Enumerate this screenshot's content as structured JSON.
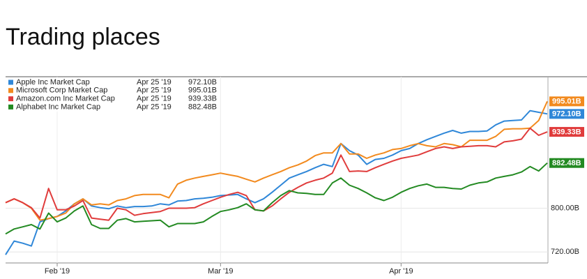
{
  "chart_data": {
    "type": "line",
    "title": "Trading places",
    "categories": [
      null,
      null,
      null,
      null,
      null,
      null,
      "Feb '19",
      null,
      null,
      null,
      null,
      null,
      null,
      null,
      null,
      null,
      null,
      null,
      null,
      null,
      null,
      null,
      null,
      null,
      null,
      "Mar '19",
      null,
      null,
      null,
      null,
      null,
      null,
      null,
      null,
      null,
      null,
      null,
      null,
      null,
      null,
      null,
      null,
      null,
      null,
      null,
      null,
      "Apr '19",
      null,
      null,
      null,
      null,
      null,
      null,
      null,
      null,
      null,
      null,
      null,
      null,
      null,
      null,
      null,
      null,
      null
    ],
    "ylim": [
      700,
      1040
    ],
    "yticks": [
      {
        "value": 720,
        "label": "720.00B"
      },
      {
        "value": 800,
        "label": "800.00B"
      }
    ],
    "grid": true,
    "legend": "top-left",
    "series": [
      {
        "name": "Apple Inc Market Cap",
        "date": "Apr 25 '19",
        "color": "#2f87d8",
        "values": [
          715,
          740,
          736,
          731,
          775,
          781,
          785,
          795,
          808,
          817,
          804,
          801,
          799,
          804,
          801,
          803,
          803,
          804,
          808,
          806,
          813,
          814,
          817,
          818,
          820,
          823,
          824,
          825,
          817,
          810,
          817,
          829,
          842,
          855,
          861,
          867,
          874,
          880,
          876,
          918,
          905,
          897,
          880,
          889,
          891,
          897,
          905,
          909,
          918,
          925,
          931,
          937,
          942,
          937,
          940,
          940,
          941,
          952,
          959,
          960,
          961,
          978,
          975,
          972.1
        ],
        "value_labels": [
          null,
          null,
          null,
          null,
          null,
          null,
          null,
          null,
          null,
          null,
          null,
          null,
          null,
          null,
          null,
          null,
          null,
          null,
          null,
          null,
          null,
          null,
          null,
          null,
          null,
          null,
          null,
          null,
          null,
          null,
          null,
          null,
          null,
          null,
          null,
          null,
          null,
          null,
          null,
          null,
          null,
          null,
          null,
          null,
          null,
          null,
          null,
          null,
          null,
          null,
          null,
          null,
          null,
          null,
          null,
          null,
          null,
          null,
          null,
          null,
          null,
          null,
          null,
          "972.10B"
        ]
      },
      {
        "name": "Microsoft Corp Market Cap",
        "date": "Apr 25 '19",
        "color": "#f28a1e",
        "values": [
          810,
          817,
          810,
          800,
          778,
          781,
          785,
          791,
          808,
          817,
          806,
          808,
          806,
          814,
          817,
          823,
          825,
          825,
          825,
          819,
          844,
          851,
          855,
          858,
          861,
          864,
          861,
          858,
          853,
          848,
          855,
          861,
          867,
          874,
          879,
          886,
          896,
          901,
          901,
          918,
          899,
          899,
          891,
          897,
          901,
          907,
          909,
          914,
          918,
          914,
          912,
          918,
          916,
          912,
          924,
          924,
          924,
          931,
          944,
          945,
          945,
          946,
          960,
          995.01
        ],
        "value_labels": [
          null,
          null,
          null,
          null,
          null,
          null,
          null,
          null,
          null,
          null,
          null,
          null,
          null,
          null,
          null,
          null,
          null,
          null,
          null,
          null,
          null,
          null,
          null,
          null,
          null,
          null,
          null,
          null,
          null,
          null,
          null,
          null,
          null,
          null,
          null,
          null,
          null,
          null,
          null,
          null,
          null,
          null,
          null,
          null,
          null,
          null,
          null,
          null,
          null,
          null,
          null,
          null,
          null,
          null,
          null,
          null,
          null,
          null,
          null,
          null,
          null,
          null,
          null,
          "995.01B"
        ]
      },
      {
        "name": "Amazon.com Inc Market Cap",
        "date": "Apr 25 '19",
        "color": "#e03c3c",
        "values": [
          810,
          817,
          810,
          801,
          782,
          836,
          797,
          797,
          804,
          814,
          782,
          780,
          778,
          800,
          797,
          787,
          790,
          792,
          794,
          800,
          800,
          800,
          801,
          808,
          814,
          820,
          825,
          829,
          823,
          797,
          795,
          804,
          817,
          829,
          838,
          846,
          851,
          855,
          864,
          897,
          867,
          868,
          867,
          874,
          880,
          886,
          891,
          894,
          897,
          903,
          909,
          912,
          909,
          912,
          913,
          914,
          914,
          912,
          921,
          923,
          926,
          946,
          933,
          939.33
        ],
        "value_labels": [
          null,
          null,
          null,
          null,
          null,
          null,
          null,
          null,
          null,
          null,
          null,
          null,
          null,
          null,
          null,
          null,
          null,
          null,
          null,
          null,
          null,
          null,
          null,
          null,
          null,
          null,
          null,
          null,
          null,
          null,
          null,
          null,
          null,
          null,
          null,
          null,
          null,
          null,
          null,
          null,
          null,
          null,
          null,
          null,
          null,
          null,
          null,
          null,
          null,
          null,
          null,
          null,
          null,
          null,
          null,
          null,
          null,
          null,
          null,
          null,
          null,
          null,
          null,
          "939.33B"
        ]
      },
      {
        "name": "Alphabet Inc Market Cap",
        "date": "Apr 25 '19",
        "color": "#238a22",
        "values": [
          753,
          762,
          766,
          770,
          762,
          791,
          775,
          782,
          795,
          804,
          770,
          763,
          763,
          778,
          781,
          775,
          776,
          777,
          778,
          766,
          772,
          772,
          772,
          775,
          785,
          794,
          797,
          801,
          808,
          797,
          795,
          810,
          823,
          832,
          828,
          827,
          825,
          825,
          846,
          855,
          842,
          836,
          828,
          819,
          814,
          820,
          829,
          836,
          841,
          844,
          838,
          838,
          836,
          835,
          842,
          846,
          848,
          855,
          858,
          861,
          866,
          876,
          868,
          882.48
        ],
        "value_labels": [
          null,
          null,
          null,
          null,
          null,
          null,
          null,
          null,
          null,
          null,
          null,
          null,
          null,
          null,
          null,
          null,
          null,
          null,
          null,
          null,
          null,
          null,
          null,
          null,
          null,
          null,
          null,
          null,
          null,
          null,
          null,
          null,
          null,
          null,
          null,
          null,
          null,
          null,
          null,
          null,
          null,
          null,
          null,
          null,
          null,
          null,
          null,
          null,
          null,
          null,
          null,
          null,
          null,
          null,
          null,
          null,
          null,
          null,
          null,
          null,
          null,
          null,
          null,
          "882.48B"
        ]
      }
    ]
  }
}
